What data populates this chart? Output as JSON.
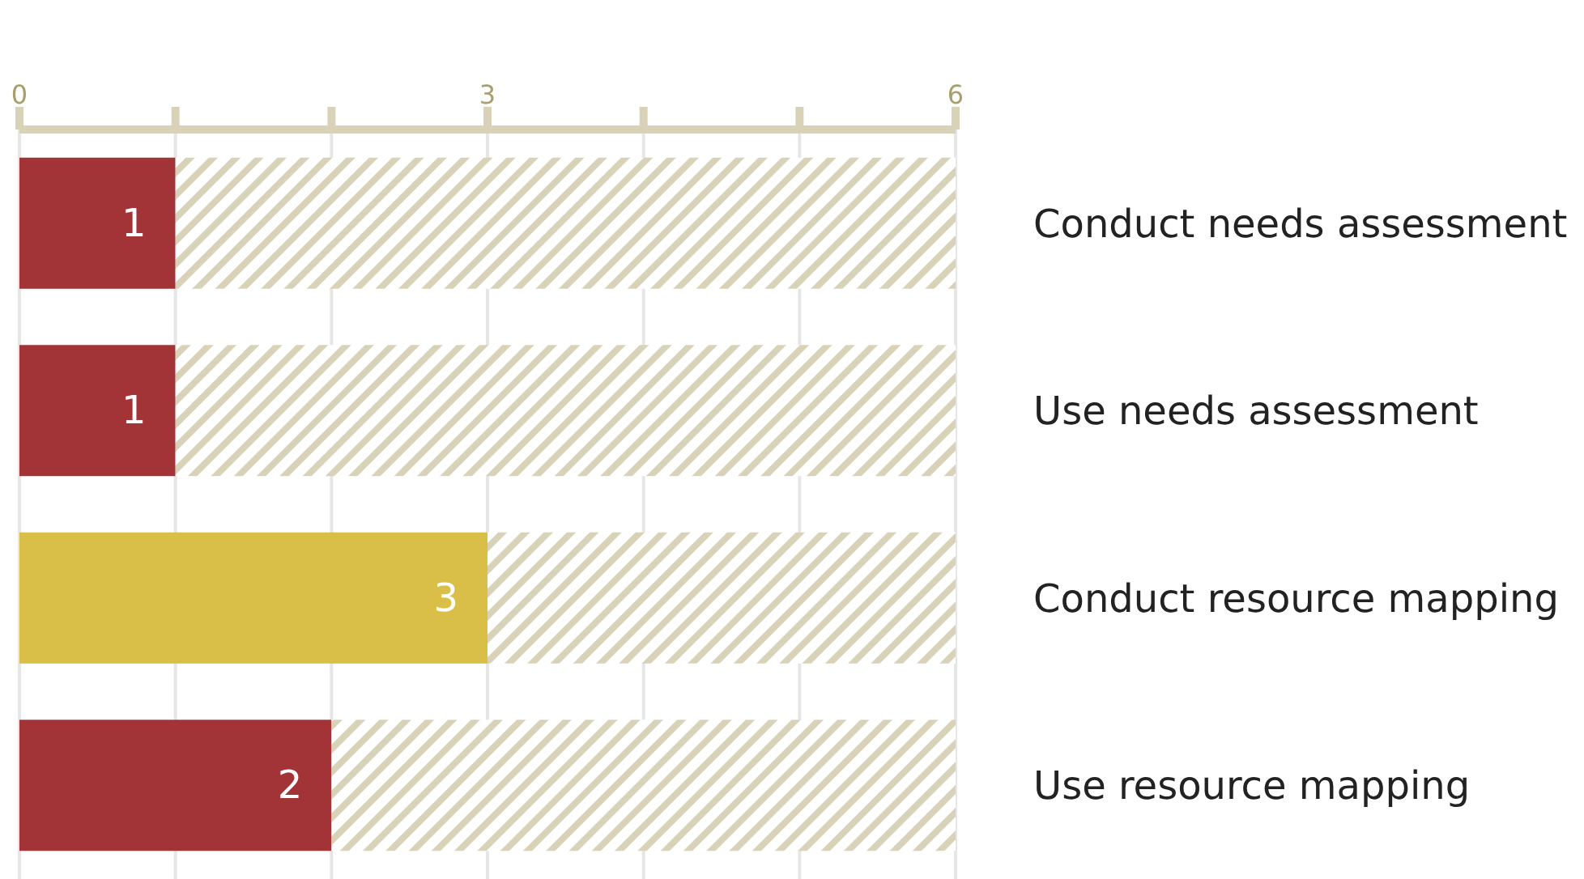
{
  "chart_data": {
    "type": "bar",
    "orientation": "horizontal",
    "stacked": true,
    "categories": [
      "Conduct needs assessment",
      "Use needs assessment",
      "Conduct resource mapping",
      "Use resource mapping"
    ],
    "series": [
      {
        "colors": [
          "#a23437",
          "#a23437",
          "#d9be48",
          "#a23437"
        ],
        "values": [
          1,
          1,
          3,
          2
        ],
        "value_labels": [
          "1",
          "1",
          "3",
          "2"
        ]
      },
      {
        "color": "#d8d3b8",
        "values": [
          5,
          5,
          3,
          4
        ]
      }
    ],
    "xlim": [
      0,
      6
    ],
    "xticks": [
      0,
      {
        "value": 1,
        "label": null
      },
      {
        "value": 2,
        "label": null
      },
      3,
      {
        "value": 4,
        "label": null
      },
      {
        "value": 5,
        "label": null
      },
      6
    ],
    "grid": "x"
  }
}
